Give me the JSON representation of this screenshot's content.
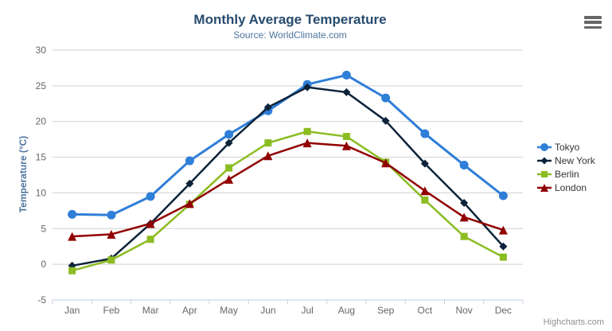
{
  "chart_data": {
    "type": "line",
    "title": "Monthly Average Temperature",
    "subtitle": "Source: WorldClimate.com",
    "xlabel": "",
    "ylabel": "Temperature (°C)",
    "ylim": [
      -5,
      30
    ],
    "ytick_step": 5,
    "grid": true,
    "legend_position": "right",
    "categories": [
      "Jan",
      "Feb",
      "Mar",
      "Apr",
      "May",
      "Jun",
      "Jul",
      "Aug",
      "Sep",
      "Oct",
      "Nov",
      "Dec"
    ],
    "series": [
      {
        "name": "Tokyo",
        "color": "#2f7ed8",
        "marker": "circle",
        "values": [
          7.0,
          6.9,
          9.5,
          14.5,
          18.2,
          21.5,
          25.2,
          26.5,
          23.3,
          18.3,
          13.9,
          9.6
        ]
      },
      {
        "name": "New York",
        "color": "#0d233a",
        "marker": "diamond",
        "values": [
          -0.2,
          0.8,
          5.7,
          11.3,
          17.0,
          22.0,
          24.8,
          24.1,
          20.1,
          14.1,
          8.6,
          2.5
        ]
      },
      {
        "name": "Berlin",
        "color": "#8bbc21",
        "marker": "square",
        "values": [
          -0.9,
          0.6,
          3.5,
          8.4,
          13.5,
          17.0,
          18.6,
          17.9,
          14.3,
          9.0,
          3.9,
          1.0
        ]
      },
      {
        "name": "London",
        "color": "#910000",
        "marker": "triangle",
        "values": [
          3.9,
          4.2,
          5.7,
          8.5,
          11.9,
          15.2,
          17.0,
          16.6,
          14.2,
          10.3,
          6.6,
          4.8
        ]
      }
    ],
    "colors": {
      "title": "#274b6d",
      "subtitle": "#4d759e",
      "axis_title": "#4d759e",
      "axis_label": "#666666",
      "grid_line": "#d0d0d0",
      "x_axis_line": "#c0d0e0",
      "legend_text": "#333333",
      "credits_text": "#909090",
      "menu_icon": "#666666"
    }
  },
  "export_menu": {
    "icon": "hamburger-icon"
  },
  "credits": {
    "label": "Highcharts.com"
  }
}
